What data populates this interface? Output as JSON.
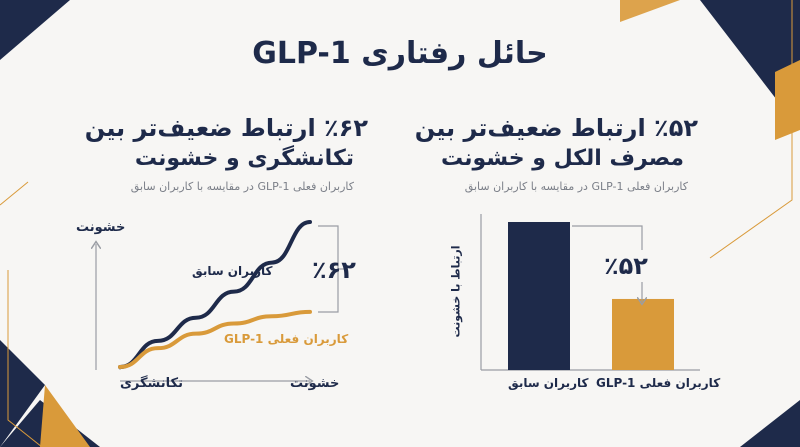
{
  "title": "حائل رفتاری GLP-1",
  "colors": {
    "navy": "#1e2a4a",
    "gold": "#d99a3a",
    "grey": "#9a9da4",
    "bg": "#f7f6f4"
  },
  "left_panel": {
    "heading_line1": "٪۶۲ ارتباط ضعیف‌تر بین",
    "heading_line2": "تکانشگری و خشونت",
    "subtitle": "کاربران فعلی GLP-1 در مقایسه با کاربران سابق"
  },
  "right_panel": {
    "heading_line1": "٪۵۲ ارتباط ضعیف‌تر بین",
    "heading_line2": "مصرف الکل و خشونت",
    "subtitle": "کاربران فعلی GLP-1 در مقایسه با کاربران سابق"
  },
  "chart_data": [
    {
      "type": "line",
      "xlabel": "تکانشگری",
      "ylabel": "خشونت",
      "x_arrow_label": "خشونت",
      "series": [
        {
          "name": "کاربران سابق",
          "color": "#1e2a4a",
          "values": [
            0,
            0.18,
            0.34,
            0.52,
            0.72,
            1.0
          ]
        },
        {
          "name": "کاربران فعلی GLP-1",
          "color": "#d99a3a",
          "values": [
            0,
            0.13,
            0.23,
            0.3,
            0.35,
            0.38
          ]
        }
      ],
      "x": [
        0,
        0.2,
        0.4,
        0.6,
        0.8,
        1.0
      ],
      "annotation": "٪۶۲"
    },
    {
      "type": "bar",
      "ylabel": "ارتباط با خشونت",
      "categories": [
        "کاربران سابق",
        "کاربران فعلی GLP-1"
      ],
      "values": [
        100,
        48
      ],
      "colors": [
        "#1e2a4a",
        "#d99a3a"
      ],
      "ylim": [
        0,
        100
      ],
      "annotation": "٪۵۲"
    }
  ]
}
